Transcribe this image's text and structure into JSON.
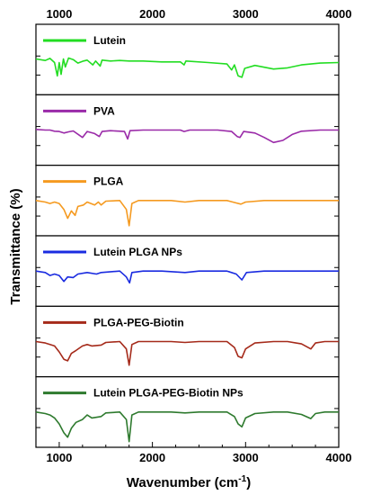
{
  "chart_data": {
    "type": "line",
    "title": "",
    "xlabel": "Wavenumber (cm",
    "xlabel_sup": "-1",
    "xlabel_close": ")",
    "ylabel": "Transmittance (%)",
    "xlim": [
      750,
      4000
    ],
    "xticks": [
      1000,
      2000,
      3000,
      4000
    ],
    "grid": false,
    "legend_position": "top-left of each panel",
    "series": [
      {
        "name": "Lutein",
        "color": "#22dd22",
        "points": [
          [
            750,
            0.02
          ],
          [
            850,
            -0.03
          ],
          [
            900,
            0.04
          ],
          [
            950,
            -0.1
          ],
          [
            980,
            -0.55
          ],
          [
            1000,
            -0.1
          ],
          [
            1020,
            -0.5
          ],
          [
            1045,
            0.02
          ],
          [
            1065,
            -0.25
          ],
          [
            1100,
            0.05
          ],
          [
            1150,
            0.0
          ],
          [
            1200,
            -0.12
          ],
          [
            1260,
            -0.05
          ],
          [
            1300,
            -0.02
          ],
          [
            1360,
            -0.18
          ],
          [
            1390,
            -0.05
          ],
          [
            1440,
            -0.22
          ],
          [
            1460,
            -0.02
          ],
          [
            1550,
            -0.05
          ],
          [
            1650,
            -0.03
          ],
          [
            1750,
            -0.05
          ],
          [
            1900,
            -0.05
          ],
          [
            2100,
            -0.08
          ],
          [
            2300,
            -0.08
          ],
          [
            2340,
            -0.18
          ],
          [
            2360,
            -0.05
          ],
          [
            2600,
            -0.1
          ],
          [
            2800,
            -0.15
          ],
          [
            2850,
            -0.35
          ],
          [
            2880,
            -0.18
          ],
          [
            2920,
            -0.55
          ],
          [
            2960,
            -0.6
          ],
          [
            2990,
            -0.3
          ],
          [
            3100,
            -0.2
          ],
          [
            3300,
            -0.32
          ],
          [
            3450,
            -0.28
          ],
          [
            3600,
            -0.18
          ],
          [
            3800,
            -0.12
          ],
          [
            4000,
            -0.1
          ]
        ]
      },
      {
        "name": "PVA",
        "color": "#9a2aa8",
        "points": [
          [
            750,
            0.02
          ],
          [
            850,
            0.0
          ],
          [
            900,
            0.0
          ],
          [
            950,
            -0.04
          ],
          [
            1000,
            -0.05
          ],
          [
            1050,
            -0.1
          ],
          [
            1100,
            -0.06
          ],
          [
            1150,
            -0.03
          ],
          [
            1250,
            -0.25
          ],
          [
            1300,
            -0.05
          ],
          [
            1380,
            -0.12
          ],
          [
            1430,
            -0.22
          ],
          [
            1460,
            -0.05
          ],
          [
            1550,
            -0.02
          ],
          [
            1700,
            -0.05
          ],
          [
            1735,
            -0.3
          ],
          [
            1760,
            -0.02
          ],
          [
            1900,
            0.0
          ],
          [
            2100,
            0.0
          ],
          [
            2300,
            0.0
          ],
          [
            2340,
            -0.05
          ],
          [
            2400,
            0.0
          ],
          [
            2700,
            0.0
          ],
          [
            2850,
            -0.05
          ],
          [
            2910,
            -0.22
          ],
          [
            2940,
            -0.25
          ],
          [
            2980,
            -0.05
          ],
          [
            3100,
            -0.1
          ],
          [
            3200,
            -0.25
          ],
          [
            3300,
            -0.42
          ],
          [
            3400,
            -0.35
          ],
          [
            3500,
            -0.15
          ],
          [
            3600,
            -0.04
          ],
          [
            3800,
            0.0
          ],
          [
            4000,
            0.0
          ]
        ]
      },
      {
        "name": "PLGA",
        "color": "#f59a20",
        "points": [
          [
            750,
            0.0
          ],
          [
            850,
            -0.05
          ],
          [
            900,
            -0.1
          ],
          [
            950,
            -0.05
          ],
          [
            1000,
            -0.1
          ],
          [
            1050,
            -0.3
          ],
          [
            1090,
            -0.6
          ],
          [
            1130,
            -0.35
          ],
          [
            1170,
            -0.5
          ],
          [
            1200,
            -0.2
          ],
          [
            1260,
            -0.15
          ],
          [
            1300,
            -0.05
          ],
          [
            1380,
            -0.15
          ],
          [
            1420,
            -0.05
          ],
          [
            1450,
            -0.15
          ],
          [
            1500,
            -0.02
          ],
          [
            1650,
            0.0
          ],
          [
            1720,
            -0.3
          ],
          [
            1750,
            -0.85
          ],
          [
            1780,
            -0.1
          ],
          [
            1850,
            0.0
          ],
          [
            2000,
            0.0
          ],
          [
            2200,
            0.0
          ],
          [
            2350,
            -0.05
          ],
          [
            2500,
            0.0
          ],
          [
            2800,
            0.0
          ],
          [
            2900,
            -0.08
          ],
          [
            2950,
            -0.12
          ],
          [
            3000,
            -0.05
          ],
          [
            3200,
            0.0
          ],
          [
            3500,
            0.0
          ],
          [
            3800,
            0.0
          ],
          [
            4000,
            0.0
          ]
        ]
      },
      {
        "name": "Lutein PLGA NPs",
        "color": "#1a2be0",
        "points": [
          [
            750,
            0.0
          ],
          [
            850,
            -0.05
          ],
          [
            900,
            -0.15
          ],
          [
            950,
            -0.1
          ],
          [
            1000,
            -0.15
          ],
          [
            1050,
            -0.35
          ],
          [
            1090,
            -0.2
          ],
          [
            1150,
            -0.22
          ],
          [
            1200,
            -0.1
          ],
          [
            1300,
            -0.05
          ],
          [
            1400,
            -0.1
          ],
          [
            1450,
            -0.05
          ],
          [
            1650,
            0.0
          ],
          [
            1720,
            -0.2
          ],
          [
            1755,
            -0.4
          ],
          [
            1780,
            -0.05
          ],
          [
            1900,
            0.0
          ],
          [
            2100,
            0.0
          ],
          [
            2350,
            -0.05
          ],
          [
            2500,
            0.0
          ],
          [
            2800,
            0.0
          ],
          [
            2900,
            -0.1
          ],
          [
            2960,
            -0.3
          ],
          [
            3010,
            -0.05
          ],
          [
            3200,
            0.0
          ],
          [
            3500,
            0.0
          ],
          [
            3800,
            0.0
          ],
          [
            4000,
            0.0
          ]
        ]
      },
      {
        "name": "PLGA-PEG-Biotin",
        "color": "#a52a1a",
        "points": [
          [
            750,
            0.0
          ],
          [
            850,
            -0.05
          ],
          [
            900,
            -0.1
          ],
          [
            950,
            -0.15
          ],
          [
            1000,
            -0.35
          ],
          [
            1050,
            -0.6
          ],
          [
            1090,
            -0.65
          ],
          [
            1130,
            -0.4
          ],
          [
            1180,
            -0.3
          ],
          [
            1250,
            -0.15
          ],
          [
            1300,
            -0.1
          ],
          [
            1350,
            -0.15
          ],
          [
            1450,
            -0.12
          ],
          [
            1500,
            -0.03
          ],
          [
            1650,
            0.0
          ],
          [
            1720,
            -0.25
          ],
          [
            1750,
            -0.8
          ],
          [
            1780,
            -0.1
          ],
          [
            1850,
            0.0
          ],
          [
            2000,
            0.0
          ],
          [
            2200,
            0.0
          ],
          [
            2350,
            -0.03
          ],
          [
            2500,
            0.0
          ],
          [
            2800,
            0.0
          ],
          [
            2880,
            -0.2
          ],
          [
            2920,
            -0.5
          ],
          [
            2960,
            -0.55
          ],
          [
            3000,
            -0.25
          ],
          [
            3100,
            -0.05
          ],
          [
            3300,
            0.0
          ],
          [
            3450,
            0.0
          ],
          [
            3600,
            -0.08
          ],
          [
            3700,
            -0.25
          ],
          [
            3750,
            -0.05
          ],
          [
            3850,
            0.0
          ],
          [
            4000,
            0.0
          ]
        ]
      },
      {
        "name": "Lutein PLGA-PEG-Biotin NPs",
        "color": "#2e7a2e",
        "points": [
          [
            750,
            0.0
          ],
          [
            850,
            -0.05
          ],
          [
            900,
            -0.1
          ],
          [
            950,
            -0.2
          ],
          [
            1000,
            -0.4
          ],
          [
            1050,
            -0.7
          ],
          [
            1090,
            -0.85
          ],
          [
            1130,
            -0.55
          ],
          [
            1180,
            -0.35
          ],
          [
            1250,
            -0.25
          ],
          [
            1300,
            -0.1
          ],
          [
            1350,
            -0.2
          ],
          [
            1450,
            -0.15
          ],
          [
            1500,
            -0.03
          ],
          [
            1650,
            0.0
          ],
          [
            1720,
            -0.25
          ],
          [
            1750,
            -1.0
          ],
          [
            1780,
            -0.1
          ],
          [
            1850,
            0.0
          ],
          [
            2000,
            0.0
          ],
          [
            2200,
            0.0
          ],
          [
            2350,
            -0.03
          ],
          [
            2500,
            0.0
          ],
          [
            2800,
            0.0
          ],
          [
            2880,
            -0.15
          ],
          [
            2920,
            -0.4
          ],
          [
            2960,
            -0.5
          ],
          [
            3000,
            -0.2
          ],
          [
            3100,
            -0.05
          ],
          [
            3300,
            0.0
          ],
          [
            3450,
            0.0
          ],
          [
            3600,
            -0.08
          ],
          [
            3700,
            -0.22
          ],
          [
            3750,
            -0.05
          ],
          [
            3850,
            0.0
          ],
          [
            4000,
            0.0
          ]
        ]
      }
    ]
  }
}
